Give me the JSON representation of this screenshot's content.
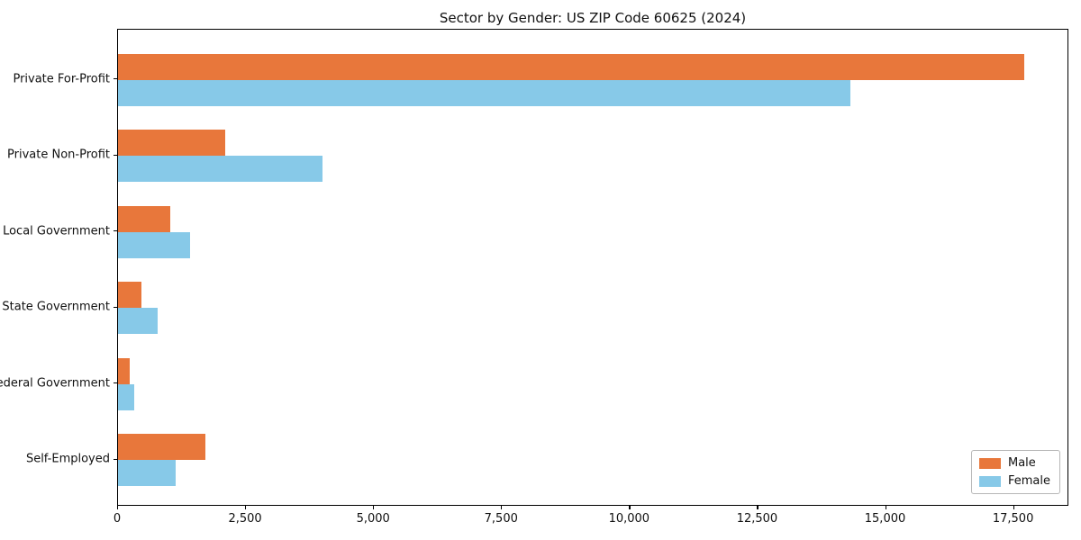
{
  "title": "Sector by Gender: US ZIP Code 60625 (2024)",
  "chart_data": {
    "type": "bar",
    "orientation": "horizontal",
    "title": "Sector by Gender: US ZIP Code 60625 (2024)",
    "categories": [
      "Private For-Profit",
      "Private Non-Profit",
      "Local Government",
      "State Government",
      "Federal Government",
      "Self-Employed"
    ],
    "series": [
      {
        "name": "Male",
        "color": "#e8773b",
        "values": [
          17700,
          2100,
          1020,
          460,
          230,
          1700
        ]
      },
      {
        "name": "Female",
        "color": "#87c9e8",
        "values": [
          14300,
          4000,
          1400,
          770,
          310,
          1130
        ]
      }
    ],
    "xlabel": "",
    "ylabel": "",
    "xlim": [
      0,
      18580
    ],
    "xticks": [
      0,
      2500,
      5000,
      7500,
      10000,
      12500,
      15000,
      17500
    ],
    "xtick_labels": [
      "0",
      "2,500",
      "5,000",
      "7,500",
      "10,000",
      "12,500",
      "15,000",
      "17,500"
    ],
    "legend_position": "lower right",
    "grid": false,
    "plot_background": "#ffffff",
    "axis_color": "#000000"
  }
}
